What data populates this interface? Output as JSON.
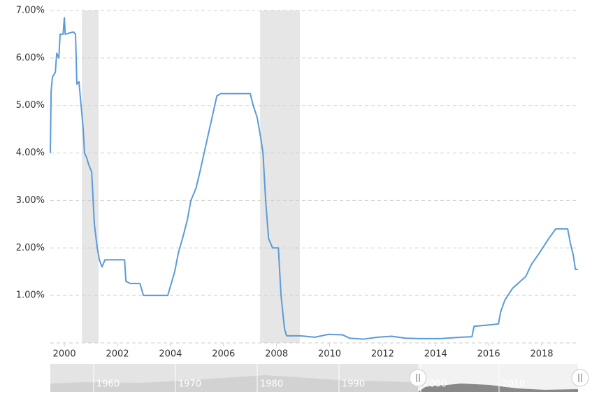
{
  "chart_data": {
    "type": "line",
    "xlim": [
      1999.47,
      2019.37
    ],
    "ylim": [
      0,
      7
    ],
    "xticks": [
      2000,
      2002,
      2004,
      2006,
      2008,
      2010,
      2012,
      2014,
      2016,
      2018
    ],
    "yticks": [
      {
        "value": 1,
        "label": "1.00%"
      },
      {
        "value": 2,
        "label": "2.00%"
      },
      {
        "value": 3,
        "label": "3.00%"
      },
      {
        "value": 4,
        "label": "4.00%"
      },
      {
        "value": 5,
        "label": "5.00%"
      },
      {
        "value": 6,
        "label": "6.00%"
      },
      {
        "value": 7,
        "label": "7.00%"
      }
    ],
    "grid": true,
    "shaded_regions": [
      [
        2000.66,
        2001.29
      ],
      [
        2007.38,
        2008.88
      ]
    ],
    "series": [
      {
        "color": "#5b9bd8",
        "x": [
          1999.47,
          1999.5,
          1999.55,
          1999.66,
          1999.71,
          1999.79,
          1999.84,
          1999.95,
          2000.0,
          2000.03,
          2000.34,
          2000.42,
          2000.45,
          2000.47,
          2000.55,
          2000.63,
          2000.71,
          2000.76,
          2000.84,
          2000.92,
          2001.03,
          2001.13,
          2001.24,
          2001.32,
          2001.42,
          2001.53,
          2001.79,
          2002.06,
          2002.27,
          2002.32,
          2002.48,
          2002.85,
          2002.98,
          2003.24,
          2003.9,
          2004.03,
          2004.16,
          2004.3,
          2004.48,
          2004.64,
          2004.77,
          2004.96,
          2005.11,
          2005.27,
          2005.43,
          2005.59,
          2005.75,
          2005.9,
          2006.27,
          2006.67,
          2007.01,
          2007.12,
          2007.27,
          2007.41,
          2007.49,
          2007.59,
          2007.7,
          2007.85,
          2008.07,
          2008.17,
          2008.3,
          2008.38,
          2008.91,
          2009.44,
          2009.96,
          2010.49,
          2010.75,
          2011.28,
          2011.81,
          2012.34,
          2012.86,
          2013.39,
          2014.18,
          2014.97,
          2015.37,
          2015.45,
          2016.03,
          2016.37,
          2016.45,
          2016.61,
          2016.9,
          2017.4,
          2017.61,
          2017.92,
          2018.27,
          2018.53,
          2018.98,
          2019.08,
          2019.19,
          2019.27,
          2019.37
        ],
        "values": [
          4.0,
          5.3,
          5.6,
          5.7,
          6.1,
          6.0,
          6.5,
          6.5,
          6.85,
          6.5,
          6.55,
          6.5,
          5.9,
          5.45,
          5.5,
          5.0,
          4.5,
          4.0,
          3.9,
          3.75,
          3.6,
          2.5,
          2.0,
          1.75,
          1.6,
          1.75,
          1.75,
          1.75,
          1.75,
          1.3,
          1.25,
          1.25,
          1.0,
          1.0,
          1.0,
          1.25,
          1.5,
          1.9,
          2.25,
          2.6,
          3.0,
          3.25,
          3.6,
          4.0,
          4.4,
          4.8,
          5.2,
          5.25,
          5.25,
          5.25,
          5.25,
          5.0,
          4.75,
          4.3,
          4.0,
          3.0,
          2.2,
          2.0,
          2.0,
          1.0,
          0.3,
          0.15,
          0.15,
          0.12,
          0.18,
          0.17,
          0.1,
          0.08,
          0.12,
          0.14,
          0.1,
          0.09,
          0.09,
          0.12,
          0.13,
          0.35,
          0.38,
          0.4,
          0.65,
          0.9,
          1.15,
          1.4,
          1.65,
          1.9,
          2.2,
          2.4,
          2.4,
          2.1,
          1.85,
          1.55,
          1.55
        ]
      }
    ],
    "navigator": {
      "labels": [
        "1960",
        "1970",
        "1980",
        "1990",
        "2000",
        "2010"
      ]
    }
  }
}
